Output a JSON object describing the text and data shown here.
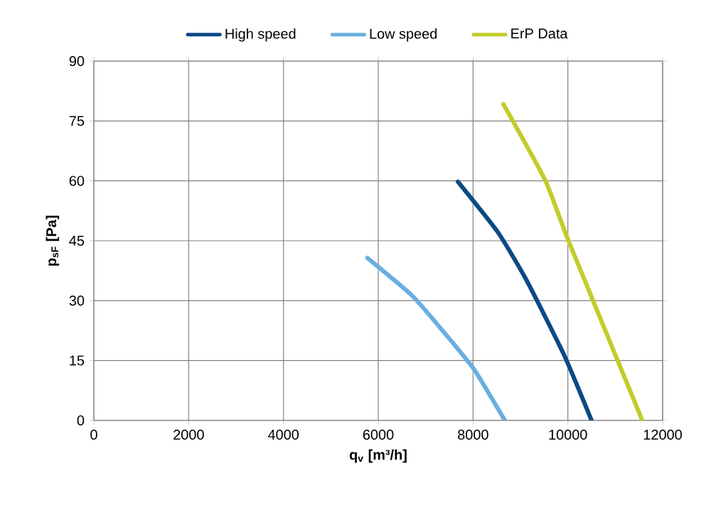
{
  "chart_data": {
    "type": "line",
    "xlabel": "q$_{v}$ [m³/h]",
    "ylabel": "p$_{sF}$ [Pa]",
    "xlim": [
      0,
      12000
    ],
    "xticks": [
      0,
      2000,
      4000,
      6000,
      8000,
      10000,
      12000
    ],
    "ylim": [
      0,
      90
    ],
    "yticks": [
      0,
      15,
      30,
      45,
      60,
      75,
      90
    ],
    "grid": true,
    "legend": "top",
    "marker": "none",
    "line_style": "solid",
    "series": [
      {
        "name": "High speed",
        "color": "#0a4a85",
        "x": [
          7680,
          8520,
          9120,
          9920,
          10500
        ],
        "values": [
          59.8,
          47.2,
          35.3,
          16.4,
          0
        ]
      },
      {
        "name": "Low speed",
        "color": "#6aaee0",
        "x": [
          5770,
          6720,
          7370,
          8020,
          8670
        ],
        "values": [
          40.7,
          31.2,
          22.3,
          12.8,
          0
        ]
      },
      {
        "name": "ErP Data",
        "color": "#c2cc2a",
        "x": [
          8640,
          9520,
          10020,
          11570
        ],
        "values": [
          79.2,
          60.2,
          44.8,
          0
        ]
      }
    ]
  }
}
